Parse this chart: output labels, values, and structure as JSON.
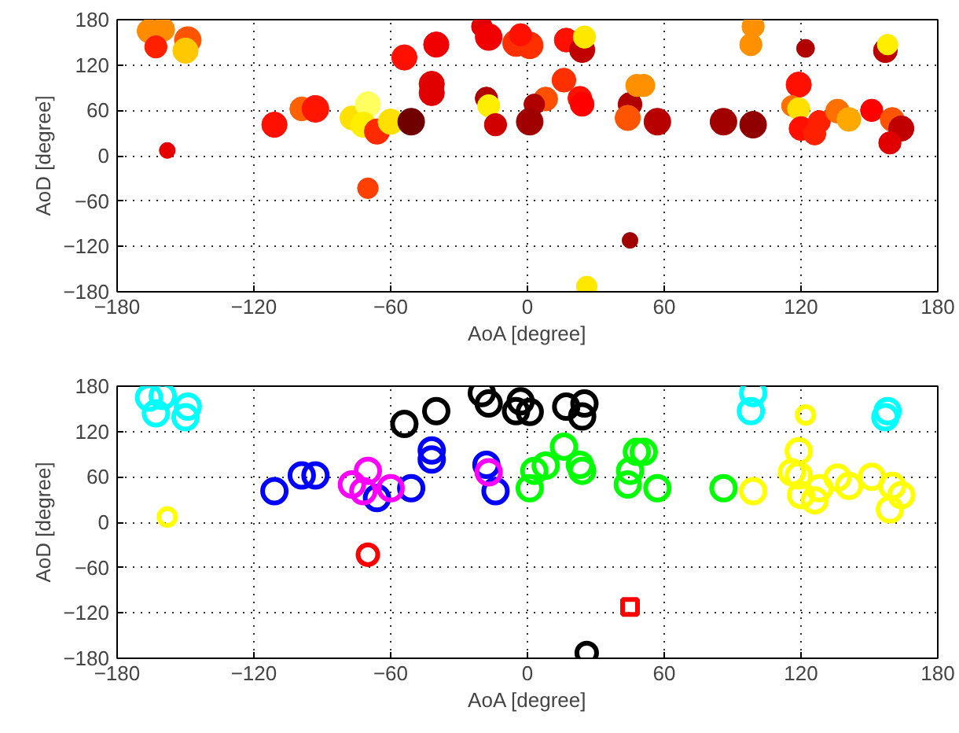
{
  "chart_data": [
    {
      "type": "bubble",
      "xlabel": "AoA [degree]",
      "ylabel": "AoD [degree]",
      "xlim": [
        -180,
        180
      ],
      "ylim": [
        -180,
        180
      ],
      "xticks": [
        -180,
        -120,
        -60,
        0,
        60,
        120,
        180
      ],
      "yticks": [
        -180,
        -120,
        -60,
        0,
        60,
        120,
        180
      ],
      "grid": true,
      "marker": "circle",
      "x": [
        -166,
        -160,
        -163,
        -149,
        -150,
        -158,
        -111,
        -99,
        -93,
        -77,
        -70,
        -72,
        -66,
        -60,
        -51,
        -70,
        -54,
        -40,
        -42,
        -42,
        -20,
        -17,
        -18,
        -17,
        -14,
        -5,
        1,
        -3,
        17,
        24,
        25,
        16,
        8,
        3,
        1,
        23,
        24,
        26,
        45,
        45,
        48,
        51,
        44,
        57,
        86,
        99,
        99,
        98,
        122,
        119,
        116,
        119,
        120,
        126,
        128,
        136,
        141,
        151,
        157,
        158,
        160,
        164,
        159
      ],
      "values": [
        165,
        167,
        144,
        153,
        139,
        7,
        41,
        62,
        62,
        50,
        68,
        41,
        32,
        45,
        45,
        -43,
        130,
        147,
        95,
        83,
        171,
        157,
        76,
        66,
        41,
        149,
        146,
        160,
        153,
        140,
        157,
        100,
        75,
        68,
        45,
        76,
        68,
        -173,
        -112,
        68,
        93,
        93,
        50,
        45,
        45,
        41,
        171,
        147,
        142,
        94,
        66,
        62,
        36,
        29,
        45,
        59,
        48,
        60,
        139,
        147,
        48,
        36,
        17
      ],
      "colors": [
        "#ff8c00",
        "#ff8c00",
        "#ff2000",
        "#ff5500",
        "#ffc800",
        "#e60000",
        "#ff1000",
        "#ff6000",
        "#ff1500",
        "#ffe000",
        "#ffff60",
        "#ffee00",
        "#ff2a00",
        "#ffe000",
        "#700000",
        "#ff4000",
        "#ff1000",
        "#f00000",
        "#e00000",
        "#e00000",
        "#e00000",
        "#f00000",
        "#b00000",
        "#ffee00",
        "#d00000",
        "#ff3000",
        "#ff3000",
        "#ff1000",
        "#ff1000",
        "#c00000",
        "#ffe800",
        "#ff3000",
        "#ff5000",
        "#b00000",
        "#a00000",
        "#ff1000",
        "#ff0000",
        "#ffe800",
        "#a00000",
        "#b00000",
        "#ff9000",
        "#ff9000",
        "#ff5500",
        "#b80000",
        "#a00000",
        "#900000",
        "#ff9000",
        "#ff9000",
        "#b00000",
        "#ff1000",
        "#ff7000",
        "#ffe000",
        "#ff1000",
        "#ff2000",
        "#ff2000",
        "#ff7000",
        "#ffa800",
        "#ff0000",
        "#c00000",
        "#ffee00",
        "#ff5500",
        "#c00000",
        "#e00000"
      ],
      "sizes": [
        0.8,
        0.8,
        0.7,
        1,
        0.9,
        0.35,
        0.9,
        0.8,
        1,
        0.8,
        0.9,
        0.9,
        0.9,
        0.9,
        1,
        0.6,
        0.9,
        0.9,
        0.9,
        0.9,
        0.6,
        1,
        0.7,
        0.7,
        0.7,
        1,
        1,
        0.7,
        0.8,
        0.9,
        0.7,
        0.8,
        0.8,
        0.6,
        1,
        0.8,
        0.8,
        0.6,
        0.35,
        0.8,
        0.7,
        0.7,
        0.9,
        1,
        1,
        1,
        0.7,
        0.7,
        0.45,
        0.9,
        0.6,
        0.7,
        0.8,
        0.7,
        0.7,
        0.8,
        0.8,
        0.7,
        0.8,
        0.6,
        0.8,
        0.9,
        0.7
      ]
    },
    {
      "type": "scatter",
      "xlabel": "AoA [degree]",
      "ylabel": "AoD [degree]",
      "xlim": [
        -180,
        180
      ],
      "ylim": [
        -180,
        180
      ],
      "xticks": [
        -180,
        -120,
        -60,
        0,
        60,
        120,
        180
      ],
      "yticks": [
        -180,
        -120,
        -60,
        0,
        60,
        120,
        180
      ],
      "grid": true,
      "series": [
        {
          "color": "#00ffff",
          "marker": "circle",
          "x": [
            -166,
            -160,
            -163,
            -149,
            -150,
            99,
            98,
            157,
            158
          ],
          "values": [
            165,
            167,
            144,
            153,
            139,
            171,
            147,
            139,
            147
          ],
          "sizes": [
            1,
            1,
            1,
            1,
            1,
            1,
            1,
            1,
            1
          ]
        },
        {
          "color": "#ffff00",
          "marker": "circle",
          "x": [
            -158,
            122,
            119,
            116,
            119,
            120,
            126,
            128,
            136,
            141,
            151,
            160,
            164,
            159,
            99
          ],
          "values": [
            7,
            142,
            94,
            66,
            62,
            36,
            29,
            45,
            59,
            48,
            60,
            48,
            36,
            17,
            41
          ],
          "sizes": [
            0.5,
            0.5,
            1,
            1,
            1,
            1,
            1,
            1,
            1,
            1,
            1,
            1,
            1,
            1,
            1
          ]
        },
        {
          "color": "#0000ff",
          "marker": "circle",
          "x": [
            -111,
            -99,
            -93,
            -66,
            -51,
            -42,
            -42,
            -18,
            -14
          ],
          "values": [
            41,
            62,
            62,
            32,
            45,
            95,
            83,
            76,
            41
          ],
          "sizes": [
            1,
            1,
            1,
            1,
            1,
            1,
            1,
            1,
            1
          ]
        },
        {
          "color": "#ff00ff",
          "marker": "circle",
          "x": [
            -77,
            -70,
            -72,
            -60,
            -17
          ],
          "values": [
            50,
            68,
            41,
            45,
            66
          ],
          "sizes": [
            1,
            1,
            1,
            1,
            1
          ]
        },
        {
          "color": "#000000",
          "marker": "circle",
          "x": [
            -54,
            -40,
            -20,
            -17,
            -5,
            1,
            -3,
            17,
            24,
            25,
            26
          ],
          "values": [
            130,
            147,
            171,
            157,
            147,
            146,
            160,
            153,
            140,
            157,
            -173
          ],
          "sizes": [
            1,
            1,
            1,
            1,
            1,
            1,
            1,
            1,
            1,
            1,
            0.7
          ]
        },
        {
          "color": "#00ff00",
          "marker": "circle",
          "x": [
            16,
            8,
            3,
            1,
            23,
            24,
            45,
            48,
            51,
            44,
            57,
            86
          ],
          "values": [
            100,
            75,
            68,
            45,
            76,
            68,
            68,
            93,
            93,
            50,
            45,
            45
          ],
          "sizes": [
            1,
            1,
            1,
            1,
            1,
            1,
            1,
            1,
            1,
            1,
            1,
            1
          ]
        },
        {
          "color": "#ff0000",
          "marker": "circle",
          "x": [
            -70
          ],
          "values": [
            -43
          ],
          "sizes": [
            0.7
          ]
        },
        {
          "color": "#ff0000",
          "marker": "square",
          "x": [
            45
          ],
          "values": [
            -112
          ],
          "sizes": [
            0.4
          ]
        }
      ]
    }
  ]
}
